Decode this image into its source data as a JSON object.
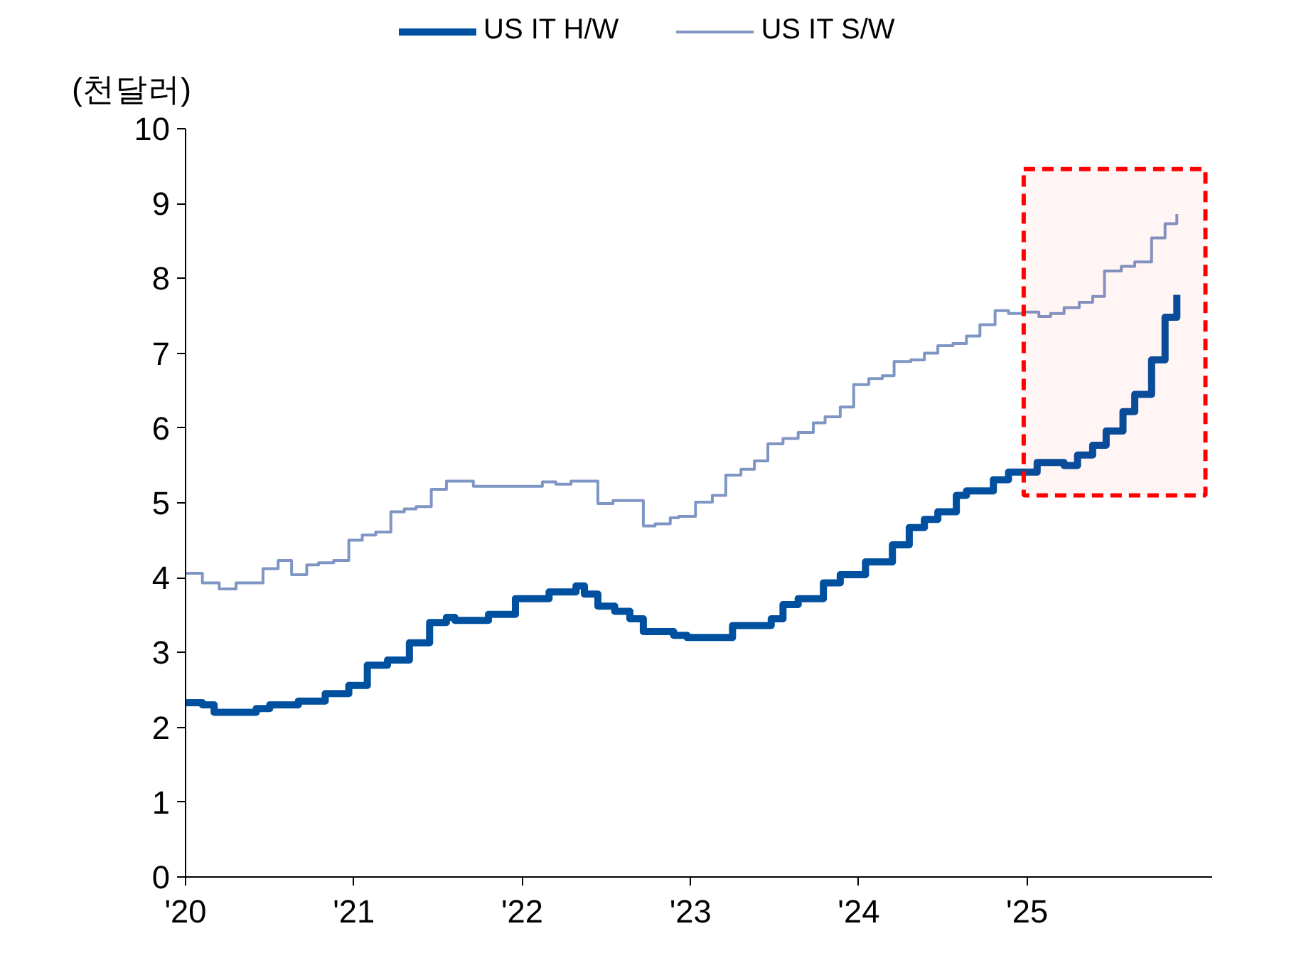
{
  "chart_data": {
    "type": "step",
    "ylabel": "(천달러)",
    "xlim": [
      2020,
      2026.1
    ],
    "xticks": [
      {
        "value": 2020,
        "label": "'20"
      },
      {
        "value": 2021,
        "label": "'21"
      },
      {
        "value": 2022,
        "label": "'22"
      },
      {
        "value": 2023,
        "label": "'23"
      },
      {
        "value": 2024,
        "label": "'24"
      },
      {
        "value": 2025,
        "label": "'25"
      }
    ],
    "ylim": [
      0,
      10
    ],
    "yticks": [
      0,
      1,
      2,
      3,
      4,
      5,
      6,
      7,
      8,
      9,
      10
    ],
    "grid": false,
    "legend": "top",
    "series": [
      {
        "name": "US IT H/W",
        "color": "#0050a0",
        "x": [
          2020.0,
          2020.1,
          2020.17,
          2020.42,
          2020.5,
          2020.67,
          2020.83,
          2020.97,
          2021.08,
          2021.2,
          2021.33,
          2021.45,
          2021.55,
          2021.6,
          2021.8,
          2021.96,
          2022.16,
          2022.32,
          2022.37,
          2022.45,
          2022.55,
          2022.64,
          2022.72,
          2022.9,
          2022.98,
          2023.25,
          2023.48,
          2023.55,
          2023.64,
          2023.79,
          2023.89,
          2024.04,
          2024.2,
          2024.3,
          2024.39,
          2024.47,
          2024.58,
          2024.64,
          2024.8,
          2024.89,
          2025.06,
          2025.22,
          2025.3,
          2025.39,
          2025.47,
          2025.57,
          2025.64,
          2025.74,
          2025.82,
          2025.89
        ],
        "values": [
          2.33,
          2.3,
          2.2,
          2.25,
          2.3,
          2.35,
          2.45,
          2.56,
          2.83,
          2.9,
          3.13,
          3.4,
          3.47,
          3.43,
          3.51,
          3.72,
          3.81,
          3.89,
          3.78,
          3.62,
          3.55,
          3.45,
          3.28,
          3.23,
          3.2,
          3.36,
          3.45,
          3.64,
          3.72,
          3.93,
          4.04,
          4.21,
          4.44,
          4.67,
          4.78,
          4.88,
          5.1,
          5.16,
          5.31,
          5.41,
          5.54,
          5.5,
          5.64,
          5.77,
          5.96,
          6.22,
          6.45,
          6.91,
          7.48,
          7.78
        ]
      },
      {
        "name": "US IT S/W",
        "color": "#7f96c4",
        "x": [
          2020.0,
          2020.1,
          2020.2,
          2020.3,
          2020.46,
          2020.55,
          2020.63,
          2020.72,
          2020.79,
          2020.88,
          2020.97,
          2021.05,
          2021.13,
          2021.22,
          2021.3,
          2021.37,
          2021.46,
          2021.55,
          2021.71,
          2022.12,
          2022.2,
          2022.29,
          2022.45,
          2022.54,
          2022.72,
          2022.79,
          2022.88,
          2022.93,
          2023.03,
          2023.13,
          2023.21,
          2023.3,
          2023.38,
          2023.46,
          2023.55,
          2023.64,
          2023.73,
          2023.8,
          2023.89,
          2023.97,
          2024.06,
          2024.14,
          2024.21,
          2024.31,
          2024.39,
          2024.47,
          2024.56,
          2024.64,
          2024.72,
          2024.81,
          2024.89,
          2024.98,
          2025.07,
          2025.14,
          2025.22,
          2025.31,
          2025.39,
          2025.46,
          2025.56,
          2025.64,
          2025.74,
          2025.82,
          2025.89
        ],
        "values": [
          4.06,
          3.93,
          3.85,
          3.93,
          4.12,
          4.23,
          4.04,
          4.17,
          4.2,
          4.23,
          4.5,
          4.57,
          4.61,
          4.88,
          4.92,
          4.95,
          5.18,
          5.29,
          5.22,
          5.28,
          5.25,
          5.29,
          4.99,
          5.03,
          4.69,
          4.72,
          4.8,
          4.82,
          5.01,
          5.1,
          5.37,
          5.45,
          5.56,
          5.79,
          5.86,
          5.94,
          6.07,
          6.15,
          6.28,
          6.58,
          6.66,
          6.7,
          6.89,
          6.91,
          7.0,
          7.1,
          7.13,
          7.23,
          7.38,
          7.57,
          7.53,
          7.55,
          7.49,
          7.53,
          7.61,
          7.68,
          7.76,
          8.1,
          8.16,
          8.22,
          8.54,
          8.73,
          8.86
        ]
      }
    ],
    "bands": [
      {
        "axis": "x",
        "from": 2024.98,
        "to": 2026.06,
        "color": "#ff0000"
      }
    ]
  }
}
